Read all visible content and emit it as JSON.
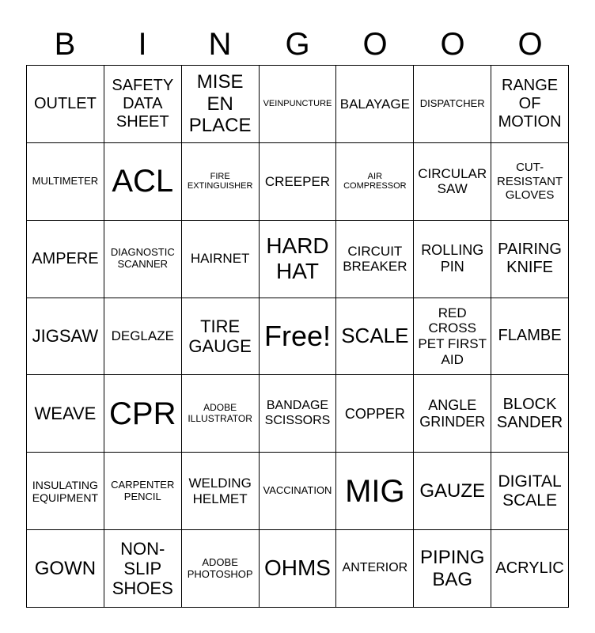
{
  "header": [
    "B",
    "I",
    "N",
    "G",
    "O",
    "O",
    "O"
  ],
  "cells": [
    [
      "OUTLET",
      "SAFETY DATA SHEET",
      "MISE EN PLACE",
      "VEINPUNCTURE",
      "BALAYAGE",
      "DISPATCHER",
      "RANGE OF MOTION"
    ],
    [
      "MULTIMETER",
      "ACL",
      "FIRE EXTINGUISHER",
      "CREEPER",
      "AIR COMPRESSOR",
      "CIRCULAR SAW",
      "CUT-RESISTANT GLOVES"
    ],
    [
      "AMPERE",
      "DIAGNOSTIC SCANNER",
      "HAIRNET",
      "HARD HAT",
      "CIRCUIT BREAKER",
      "ROLLING PIN",
      "PAIRING KNIFE"
    ],
    [
      "JIGSAW",
      "DEGLAZE",
      "TIRE GAUGE",
      "Free!",
      "SCALE",
      "RED CROSS PET FIRST AID",
      "FLAMBE"
    ],
    [
      "WEAVE",
      "CPR",
      "ADOBE ILLUSTRATOR",
      "BANDAGE SCISSORS",
      "COPPER",
      "ANGLE GRINDER",
      "BLOCK SANDER"
    ],
    [
      "INSULATING EQUIPMENT",
      "CARPENTER PENCIL",
      "WELDING HELMET",
      "VACCINATION",
      "MIG",
      "GAUZE",
      "DIGITAL SCALE"
    ],
    [
      "GOWN",
      "NON-SLIP SHOES",
      "ADOBE PHOTOSHOP",
      "OHMS",
      "ANTERIOR",
      "PIPING BAG",
      "ACRYLIC"
    ]
  ]
}
